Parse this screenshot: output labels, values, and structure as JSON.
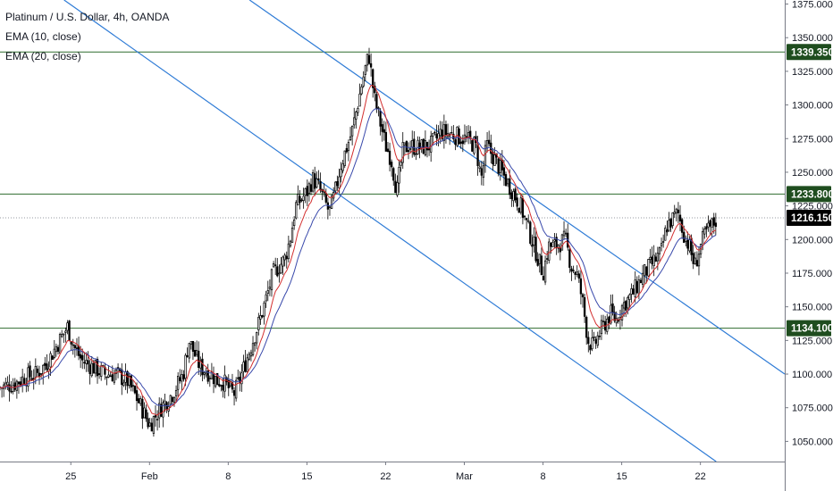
{
  "legend": {
    "title": "Platinum / U.S. Dollar, 4h, OANDA",
    "ema10": "EMA (10, close)",
    "ema20": "EMA (20, close)"
  },
  "colors": {
    "channel": "#2e7bd6",
    "level": "#2f6b2f",
    "tag_bg": "#1f4d1f",
    "ema10": "#d32f2f",
    "ema20": "#3949ab",
    "candle": "#000000",
    "grid_axis": "#787b86"
  },
  "chart_data": {
    "type": "candlestick",
    "title": "Platinum / U.S. Dollar, 4h, OANDA",
    "ylim": [
      1035,
      1378
    ],
    "y_ticks": [
      1050,
      1075,
      1100,
      1125,
      1150,
      1175,
      1200,
      1225,
      1250,
      1275,
      1300,
      1325,
      1350,
      1375
    ],
    "y_tick_labels": [
      "1050.000",
      "1075.000",
      "1100.000",
      "1125.000",
      "1150.000",
      "1175.000",
      "1200.000",
      "1225.000",
      "1250.000",
      "1275.000",
      "1300.000",
      "1325.000",
      "1350.000",
      "1375.000"
    ],
    "x_ticks": [
      {
        "label": "25",
        "day": 0
      },
      {
        "label": "Feb",
        "day": 7
      },
      {
        "label": "8",
        "day": 14
      },
      {
        "label": "15",
        "day": 21
      },
      {
        "label": "22",
        "day": 28
      },
      {
        "label": "Mar",
        "day": 35
      },
      {
        "label": "8",
        "day": 42
      },
      {
        "label": "15",
        "day": 49
      },
      {
        "label": "22",
        "day": 56
      }
    ],
    "xlim_days": [
      -6.3,
      63.5
    ],
    "horizontal_levels": [
      {
        "value": 1339.35,
        "label": "1339.350"
      },
      {
        "value": 1233.8,
        "label": "1233.800"
      },
      {
        "value": 1134.1,
        "label": "1134.100"
      }
    ],
    "current_price": {
      "value": 1216.15,
      "label": "1216.150"
    },
    "channel_lines": [
      {
        "p1": {
          "day": 15.9,
          "price": 1378
        },
        "p2": {
          "day": 63.5,
          "price": 1100
        }
      },
      {
        "p1": {
          "day": -0.6,
          "price": 1378
        },
        "p2": {
          "day": 57.4,
          "price": 1035
        }
      }
    ],
    "close_path": [
      [
        -6.3,
        1090
      ],
      [
        -5.0,
        1093
      ],
      [
        -4.0,
        1098
      ],
      [
        -3.0,
        1100
      ],
      [
        -2.0,
        1110
      ],
      [
        -1.0,
        1125
      ],
      [
        -0.3,
        1135
      ],
      [
        0.3,
        1120
      ],
      [
        1.0,
        1110
      ],
      [
        2.0,
        1105
      ],
      [
        3.0,
        1100
      ],
      [
        4.0,
        1100
      ],
      [
        5.0,
        1095
      ],
      [
        6.0,
        1080
      ],
      [
        7.0,
        1062
      ],
      [
        8.0,
        1075
      ],
      [
        9.0,
        1085
      ],
      [
        10.0,
        1100
      ],
      [
        10.5,
        1125
      ],
      [
        11.5,
        1105
      ],
      [
        12.5,
        1100
      ],
      [
        13.0,
        1095
      ],
      [
        13.5,
        1095
      ],
      [
        14.0,
        1090
      ],
      [
        14.5,
        1085
      ],
      [
        15.0,
        1095
      ],
      [
        16.0,
        1120
      ],
      [
        17.0,
        1145
      ],
      [
        18.0,
        1175
      ],
      [
        19.0,
        1185
      ],
      [
        19.5,
        1200
      ],
      [
        20.0,
        1225
      ],
      [
        21.0,
        1235
      ],
      [
        21.5,
        1245
      ],
      [
        22.0,
        1240
      ],
      [
        22.5,
        1230
      ],
      [
        23.0,
        1220
      ],
      [
        23.5,
        1235
      ],
      [
        24.0,
        1255
      ],
      [
        25.0,
        1280
      ],
      [
        25.5,
        1300
      ],
      [
        26.0,
        1320
      ],
      [
        26.5,
        1338
      ],
      [
        27.0,
        1305
      ],
      [
        28.0,
        1270
      ],
      [
        28.5,
        1260
      ],
      [
        29.0,
        1235
      ],
      [
        29.5,
        1265
      ],
      [
        30.0,
        1270
      ],
      [
        31.0,
        1268
      ],
      [
        32.0,
        1270
      ],
      [
        33.0,
        1280
      ],
      [
        34.0,
        1278
      ],
      [
        35.0,
        1275
      ],
      [
        36.0,
        1270
      ],
      [
        36.5,
        1245
      ],
      [
        37.0,
        1270
      ],
      [
        38.0,
        1255
      ],
      [
        39.0,
        1240
      ],
      [
        40.0,
        1225
      ],
      [
        41.0,
        1200
      ],
      [
        42.0,
        1175
      ],
      [
        42.5,
        1195
      ],
      [
        43.0,
        1195
      ],
      [
        44.0,
        1200
      ],
      [
        44.5,
        1180
      ],
      [
        45.0,
        1175
      ],
      [
        45.5,
        1155
      ],
      [
        46.0,
        1125
      ],
      [
        46.5,
        1120
      ],
      [
        47.0,
        1130
      ],
      [
        48.0,
        1145
      ],
      [
        48.5,
        1140
      ],
      [
        49.0,
        1150
      ],
      [
        50.0,
        1160
      ],
      [
        51.0,
        1175
      ],
      [
        52.0,
        1185
      ],
      [
        52.5,
        1190
      ],
      [
        53.0,
        1210
      ],
      [
        54.0,
        1220
      ],
      [
        54.5,
        1205
      ],
      [
        55.0,
        1195
      ],
      [
        55.5,
        1180
      ],
      [
        56.0,
        1195
      ],
      [
        56.5,
        1205
      ],
      [
        57.0,
        1210
      ],
      [
        57.5,
        1216
      ]
    ]
  }
}
